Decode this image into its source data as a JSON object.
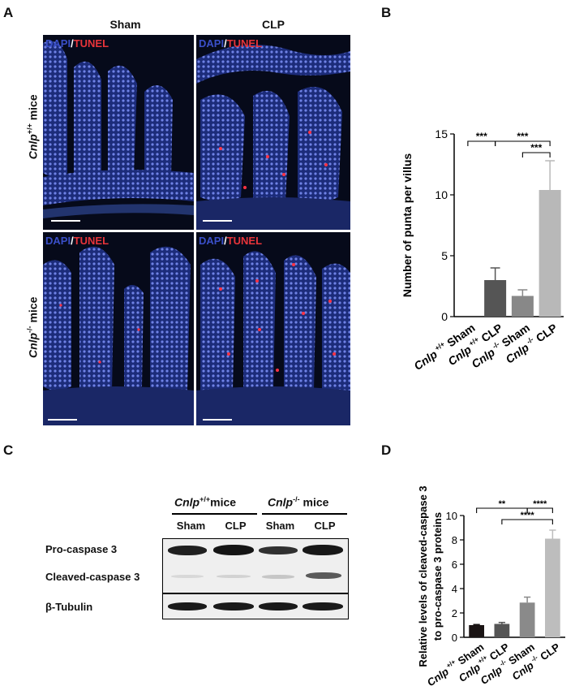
{
  "panel_a": {
    "label": "A",
    "col_headers": [
      "Sham",
      "CLP"
    ],
    "row_gene": "Cnlp",
    "row_labels": [
      {
        "gene": "Cnlp",
        "sup": "+/+",
        "suffix": " mice"
      },
      {
        "gene": "Cnlp",
        "sup": "-/-",
        "suffix": " mice"
      }
    ],
    "stain": {
      "dapi": "DAPI",
      "slash": "/",
      "tunel": "TUNEL"
    },
    "colors": {
      "dapi": "#3a4fc8",
      "tunel": "#e8343a",
      "background": "#070b1c"
    }
  },
  "panel_b": {
    "label": "B",
    "chart_data": {
      "type": "bar",
      "categories": [
        {
          "gene": "Cnlp",
          "sup": "+/+",
          "cond": "Sham"
        },
        {
          "gene": "Cnlp",
          "sup": "+/+",
          "cond": "CLP"
        },
        {
          "gene": "Cnlp",
          "sup": "-/-",
          "cond": "Sham"
        },
        {
          "gene": "Cnlp",
          "sup": "-/-",
          "cond": "CLP"
        }
      ],
      "values": [
        0,
        3.0,
        1.7,
        10.4
      ],
      "errors": [
        0,
        1.0,
        0.5,
        2.4
      ],
      "colors": [
        "#2a2a2a",
        "#555555",
        "#888888",
        "#b8b8b8"
      ],
      "ylabel": "Number of punta per villus",
      "ylim": [
        0,
        15
      ],
      "yticks": [
        0,
        5,
        10,
        15
      ],
      "significance": [
        {
          "from": 0,
          "to": 1,
          "label": "***"
        },
        {
          "from": 1,
          "to": 3,
          "label": "***"
        },
        {
          "from": 2,
          "to": 3,
          "label": "***"
        }
      ]
    }
  },
  "panel_c": {
    "label": "C",
    "groups": [
      {
        "gene": "Cnlp",
        "sup": "+/+",
        "suffix": "mice"
      },
      {
        "gene": "Cnlp",
        "sup": "-/-",
        "suffix": " mice"
      }
    ],
    "lanes": [
      "Sham",
      "CLP",
      "Sham",
      "CLP"
    ],
    "rows": [
      "Pro-caspase 3",
      "Cleaved-caspase 3",
      "β-Tubulin"
    ]
  },
  "panel_d": {
    "label": "D",
    "chart_data": {
      "type": "bar",
      "categories": [
        {
          "gene": "Cnlp",
          "sup": "+/+",
          "cond": "Sham"
        },
        {
          "gene": "Cnlp",
          "sup": "+/+",
          "cond": "CLP"
        },
        {
          "gene": "Cnlp",
          "sup": "-/-",
          "cond": "Sham"
        },
        {
          "gene": "Cnlp",
          "sup": "-/-",
          "cond": "CLP"
        }
      ],
      "values": [
        1.0,
        1.1,
        2.85,
        8.1
      ],
      "errors": [
        0.05,
        0.12,
        0.45,
        0.7
      ],
      "colors": [
        "#1a1414",
        "#555555",
        "#8a8a8a",
        "#bdbdbd"
      ],
      "ylabel": [
        "Relative levels of cleaved-caspase 3",
        "to pro-caspase 3 proteins"
      ],
      "ylim": [
        0,
        10
      ],
      "yticks": [
        0,
        2,
        4,
        6,
        8,
        10
      ],
      "significance": [
        {
          "from": 0,
          "to": 2,
          "label": "**"
        },
        {
          "from": 2,
          "to": 3,
          "label": "****"
        },
        {
          "from": 1,
          "to": 3,
          "label": "****"
        }
      ]
    }
  }
}
